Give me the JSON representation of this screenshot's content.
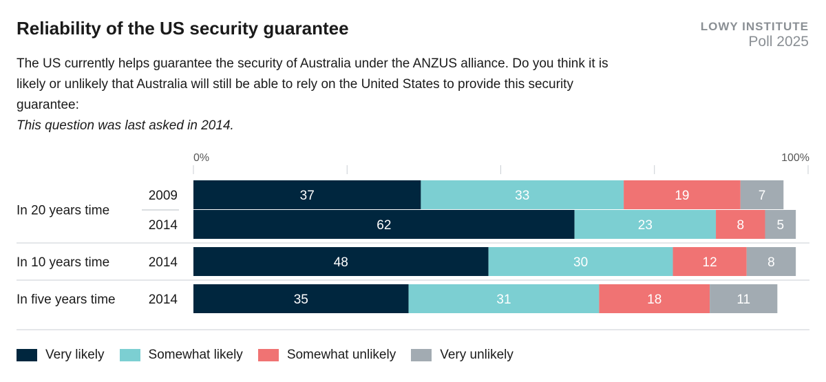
{
  "header": {
    "title": "Reliability of the US security guarantee",
    "org": "LOWY INSTITUTE",
    "poll": "Poll 2025",
    "question": "The US currently helps guarantee the security of Australia under the ANZUS alliance. Do you think it is likely or unlikely that Australia will still be able to rely on the United States to provide this security guarantee:",
    "note": "This question was last asked in 2014."
  },
  "colors": {
    "very_likely": "#00263e",
    "somewhat_likely": "#7ccfd2",
    "somewhat_unlikely": "#f07373",
    "very_unlikely": "#a2abb2"
  },
  "chart_data": {
    "type": "bar",
    "orientation": "horizontal",
    "stacked": true,
    "title": "Reliability of the US security guarantee",
    "xlim": [
      0,
      100
    ],
    "axis_ticks": [
      "0%",
      "100%"
    ],
    "grid": true,
    "legend_position": "bottom-left",
    "groups": [
      {
        "label": "In 20 years time",
        "rows": [
          {
            "year": "2009",
            "values": [
              37,
              33,
              19,
              7
            ]
          },
          {
            "year": "2014",
            "values": [
              62,
              23,
              8,
              5
            ]
          }
        ]
      },
      {
        "label": "In 10 years time",
        "rows": [
          {
            "year": "2014",
            "values": [
              48,
              30,
              12,
              8
            ]
          }
        ]
      },
      {
        "label": "In five years time",
        "rows": [
          {
            "year": "2014",
            "values": [
              35,
              31,
              18,
              11
            ]
          }
        ]
      }
    ],
    "series": [
      {
        "name": "Very likely",
        "color": "#00263e"
      },
      {
        "name": "Somewhat likely",
        "color": "#7ccfd2"
      },
      {
        "name": "Somewhat unlikely",
        "color": "#f07373"
      },
      {
        "name": "Very unlikely",
        "color": "#a2abb2"
      }
    ]
  }
}
